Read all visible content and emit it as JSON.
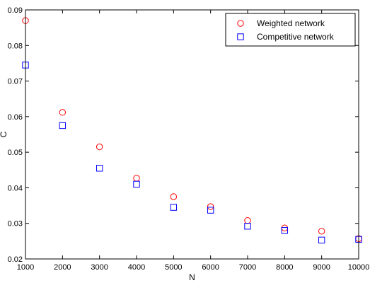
{
  "chart_data": {
    "type": "scatter",
    "xlabel": "N",
    "ylabel": "C",
    "xlim": [
      1000,
      10000
    ],
    "ylim": [
      0.02,
      0.09
    ],
    "x_ticks": [
      1000,
      2000,
      3000,
      4000,
      5000,
      6000,
      7000,
      8000,
      9000,
      10000
    ],
    "y_ticks": [
      0.02,
      0.03,
      0.04,
      0.05,
      0.06,
      0.07,
      0.08,
      0.09
    ],
    "x_tick_labels": [
      "1000",
      "2000",
      "3000",
      "4000",
      "5000",
      "6000",
      "7000",
      "8000",
      "9000",
      "10000"
    ],
    "y_tick_labels": [
      "0.02",
      "0.03",
      "0.04",
      "0.05",
      "0.06",
      "0.07",
      "0.08",
      "0.09"
    ],
    "grid": false,
    "legend_position": "top-right",
    "series": [
      {
        "name": "Weighted network",
        "marker": "circle",
        "color": "#ff0000",
        "x": [
          1000,
          2000,
          3000,
          4000,
          5000,
          6000,
          7000,
          8000,
          9000,
          10000
        ],
        "y": [
          0.087,
          0.0612,
          0.0515,
          0.0427,
          0.0375,
          0.0347,
          0.0308,
          0.0287,
          0.0278,
          0.0257
        ]
      },
      {
        "name": "Competitive network",
        "marker": "square",
        "color": "#0000ff",
        "x": [
          1000,
          2000,
          3000,
          4000,
          5000,
          6000,
          7000,
          8000,
          9000,
          10000
        ],
        "y": [
          0.0745,
          0.0575,
          0.0455,
          0.041,
          0.0345,
          0.0337,
          0.0292,
          0.028,
          0.0253,
          0.0255
        ]
      }
    ]
  }
}
